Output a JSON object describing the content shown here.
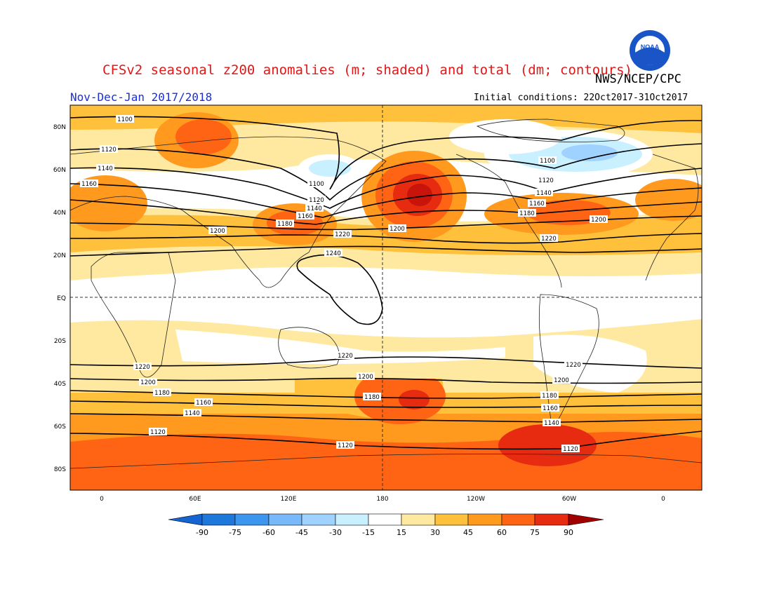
{
  "title": "CFSv2 seasonal z200 anomalies (m; shaded) and total (dm; contours)",
  "agency": "NWS/NCEP/CPC",
  "season": "Nov-Dec-Jan 2017/2018",
  "initial_conditions": "Initial conditions: 22Oct2017-31Oct2017",
  "logo": {
    "icon": "noaa-logo-icon",
    "text": "NOAA"
  },
  "map": {
    "lat_labels": [
      "80N",
      "60N",
      "40N",
      "20N",
      "EQ",
      "20S",
      "40S",
      "60S",
      "80S"
    ],
    "lon_labels": [
      "0",
      "60E",
      "120E",
      "180",
      "120W",
      "60W",
      "0"
    ]
  },
  "contours": {
    "levels_dm": [
      1100,
      1120,
      1140,
      1160,
      1180,
      1200,
      1220,
      1240
    ],
    "labels": [
      {
        "id": "c1",
        "text": "1100"
      },
      {
        "id": "c2",
        "text": "1120"
      },
      {
        "id": "c3",
        "text": "1140"
      },
      {
        "id": "c4",
        "text": "1160"
      },
      {
        "id": "c5",
        "text": "1100"
      },
      {
        "id": "c6",
        "text": "1120"
      },
      {
        "id": "c7",
        "text": "1140"
      },
      {
        "id": "c8",
        "text": "1160"
      },
      {
        "id": "c9",
        "text": "1180"
      },
      {
        "id": "c10",
        "text": "1200"
      },
      {
        "id": "c11",
        "text": "1220"
      },
      {
        "id": "c12",
        "text": "1200"
      },
      {
        "id": "c13",
        "text": "1240"
      },
      {
        "id": "c14",
        "text": "1100"
      },
      {
        "id": "c15",
        "text": "1120"
      },
      {
        "id": "c16",
        "text": "1140"
      },
      {
        "id": "c17",
        "text": "1160"
      },
      {
        "id": "c18",
        "text": "1180"
      },
      {
        "id": "c19",
        "text": "1200"
      },
      {
        "id": "c20",
        "text": "1220"
      },
      {
        "id": "c21",
        "text": "1220"
      },
      {
        "id": "c22",
        "text": "1200"
      },
      {
        "id": "c23",
        "text": "1180"
      },
      {
        "id": "c24",
        "text": "1160"
      },
      {
        "id": "c25",
        "text": "1140"
      },
      {
        "id": "c26",
        "text": "1120"
      },
      {
        "id": "c27",
        "text": "1220"
      },
      {
        "id": "c28",
        "text": "1200"
      },
      {
        "id": "c29",
        "text": "1180"
      },
      {
        "id": "c30",
        "text": "1120"
      },
      {
        "id": "c31",
        "text": "1220"
      },
      {
        "id": "c32",
        "text": "1200"
      },
      {
        "id": "c33",
        "text": "1180"
      },
      {
        "id": "c34",
        "text": "1160"
      },
      {
        "id": "c35",
        "text": "1140"
      },
      {
        "id": "c36",
        "text": "1120"
      }
    ]
  },
  "colorbar": {
    "unit": "m",
    "ticks": [
      "-90",
      "-75",
      "-60",
      "-45",
      "-30",
      "-15",
      "15",
      "30",
      "45",
      "60",
      "75",
      "90"
    ],
    "colors": [
      "#1464d2",
      "#1e78dc",
      "#3c96f0",
      "#78b9fa",
      "#a0d2ff",
      "#c8f0ff",
      "#ffffff",
      "#ffe9a0",
      "#ffc03c",
      "#ff9a1e",
      "#ff6414",
      "#e62b10",
      "#c8140a",
      "#a00000"
    ]
  }
}
